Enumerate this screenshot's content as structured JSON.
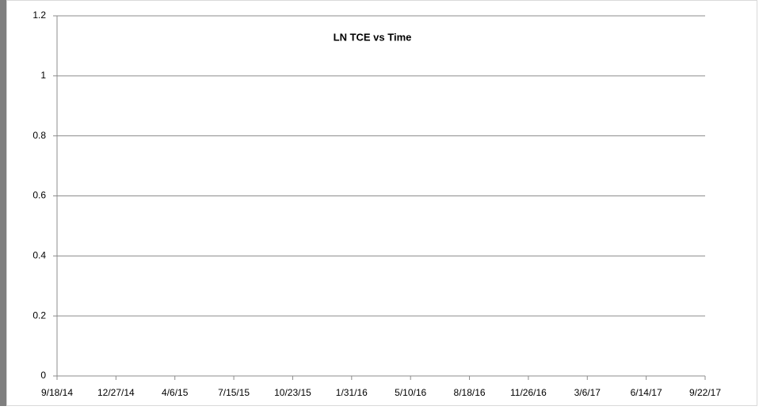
{
  "chart_data": {
    "type": "scatter",
    "title": "LN TCE  vs Time",
    "series": [],
    "xticks": [
      "9/18/14",
      "12/27/14",
      "4/6/15",
      "7/15/15",
      "10/23/15",
      "1/31/16",
      "5/10/16",
      "8/18/16",
      "11/26/16",
      "3/6/17",
      "6/14/17",
      "9/22/17"
    ],
    "ylim": [
      0,
      1.2
    ],
    "yticks": [
      0,
      0.2,
      0.4,
      0.6,
      0.8,
      1,
      1.2
    ],
    "grid": true
  }
}
